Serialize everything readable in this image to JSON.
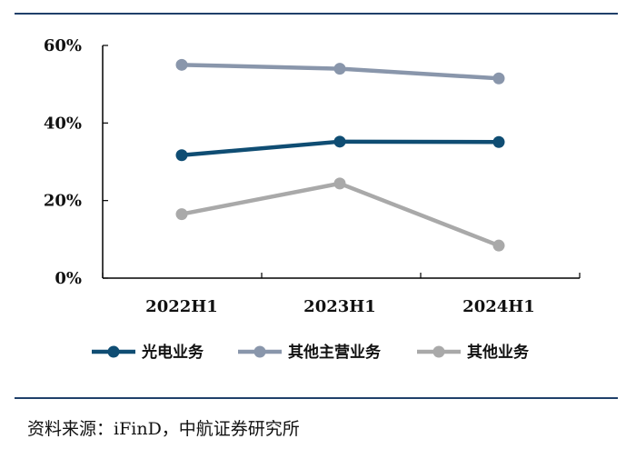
{
  "chart_data": {
    "type": "line",
    "categories": [
      "2022H1",
      "2023H1",
      "2024H1"
    ],
    "series": [
      {
        "name": "光电业务",
        "values": [
          31.7,
          35.2,
          35.1
        ],
        "color": "#0f4d73"
      },
      {
        "name": "其他主营业务",
        "values": [
          55.0,
          54.0,
          51.5
        ],
        "color": "#8996ab"
      },
      {
        "name": "其他业务",
        "values": [
          16.5,
          24.4,
          8.4
        ],
        "color": "#a9a9a9"
      }
    ],
    "y_ticks": [
      "0%",
      "20%",
      "40%",
      "60%"
    ],
    "ylim": [
      0,
      60
    ],
    "grid": false,
    "legend_position": "bottom",
    "title": "",
    "xlabel": "",
    "ylabel": ""
  },
  "frame_color": "#20406a",
  "source": "资料来源：iFinD，中航证券研究所"
}
